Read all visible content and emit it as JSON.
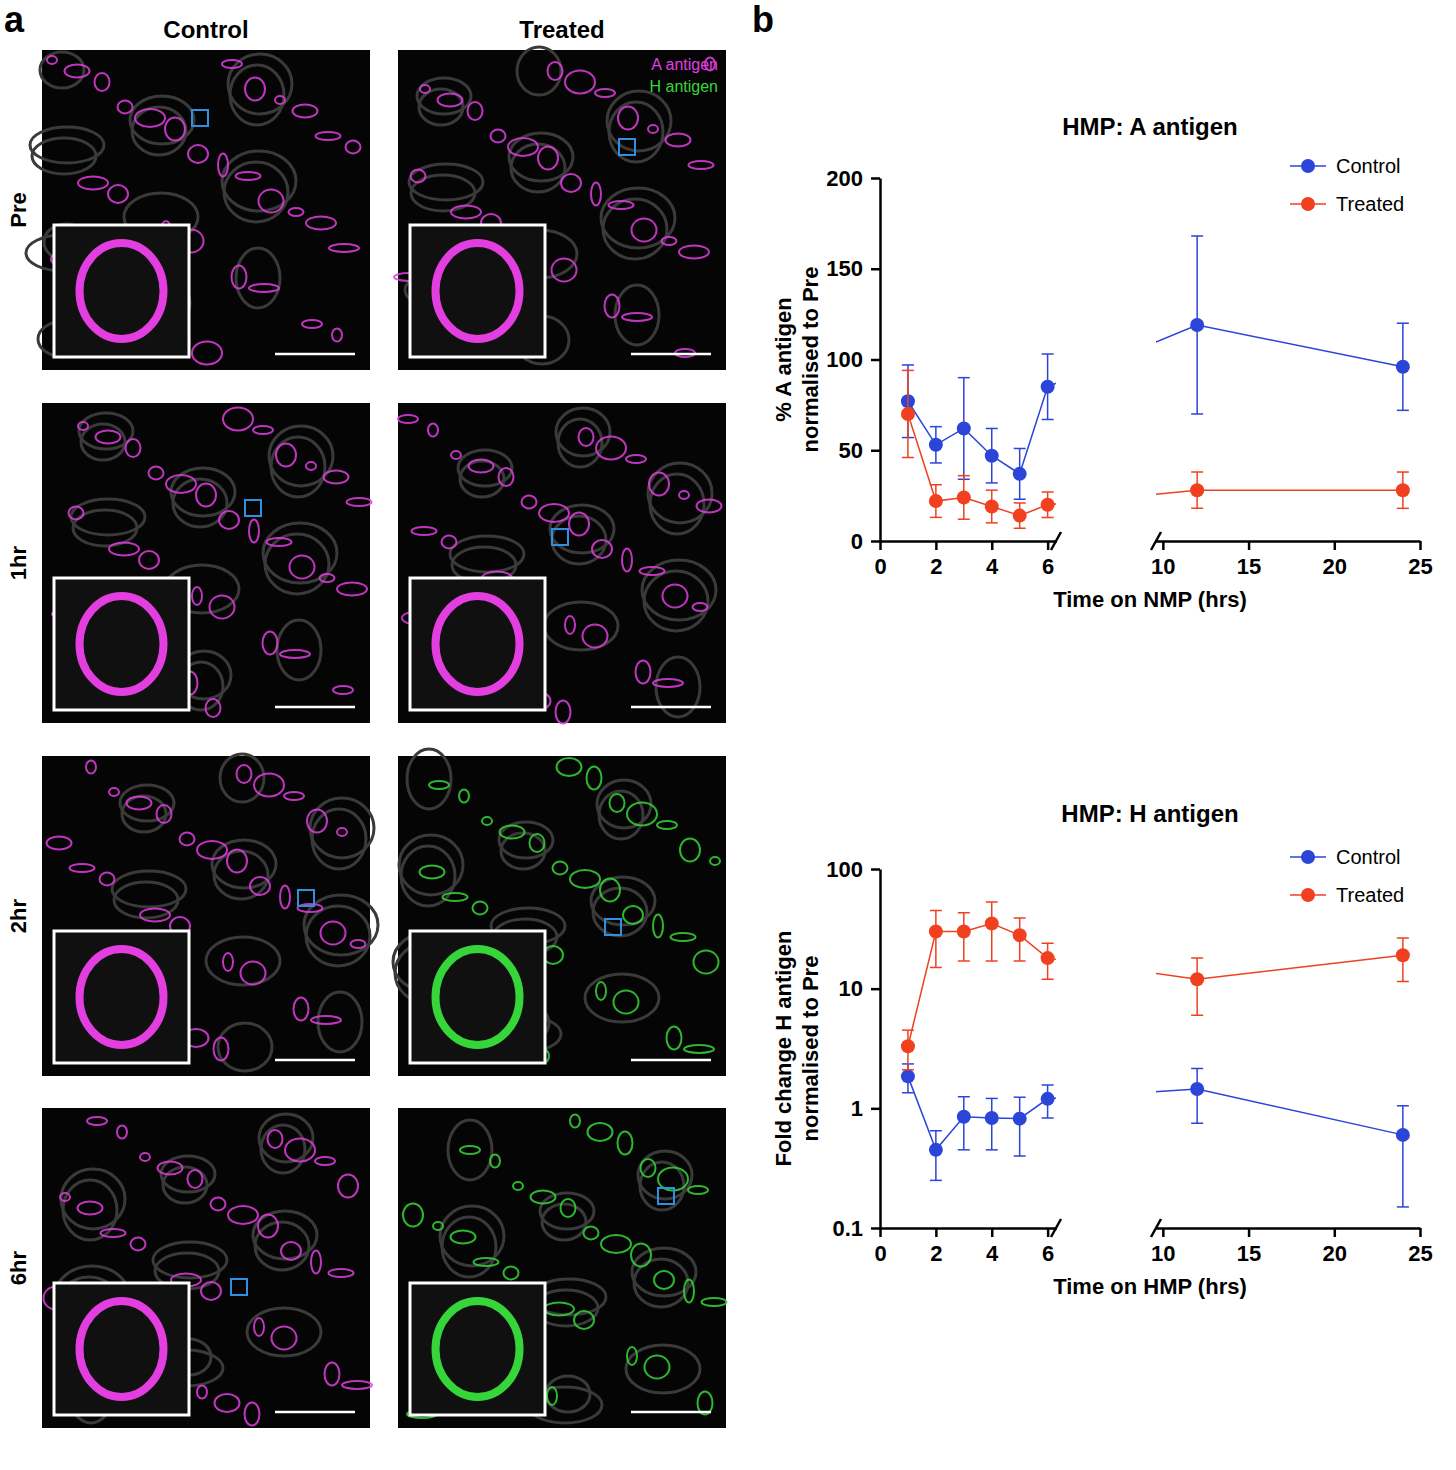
{
  "panel_a": {
    "letter": "a",
    "columns": [
      "Control",
      "Treated"
    ],
    "rows": [
      "Pre",
      "1hr",
      "2hr",
      "6hr"
    ],
    "legend": [
      {
        "name": "A antigen",
        "color": "#e23ee0"
      },
      {
        "name": "H antigen",
        "color": "#36d63a"
      }
    ]
  },
  "panel_b": {
    "letter": "b"
  },
  "chart_data": [
    {
      "type": "line",
      "title": "HMP: A antigen",
      "x_label": "Time on NMP (hrs)",
      "y_label": "% A antigen normalised to Pre",
      "x": [
        1,
        2,
        3,
        4,
        5,
        6,
        12,
        24
      ],
      "series": [
        {
          "name": "Control",
          "color": "#2b45d9",
          "values": [
            77,
            53,
            62,
            47,
            37,
            85,
            119,
            96
          ],
          "errors": [
            20,
            10,
            28,
            15,
            14,
            18,
            49,
            24
          ]
        },
        {
          "name": "Treated",
          "color": "#f0401f",
          "values": [
            70,
            22,
            24,
            19,
            14,
            20,
            28,
            28
          ],
          "errors": [
            24,
            9,
            12,
            9,
            7,
            7,
            10,
            10
          ]
        }
      ],
      "xlim": [
        0,
        25
      ],
      "xbreak": [
        6.3,
        9.6
      ],
      "xticks": [
        0,
        2,
        4,
        6,
        10,
        15,
        20,
        25
      ],
      "ylim": [
        0,
        200
      ],
      "yticks": [
        0,
        50,
        100,
        150,
        200
      ],
      "legend": "upper right",
      "marker": "circle",
      "grid": false
    },
    {
      "type": "line",
      "title": "HMP: H antigen",
      "x_label": "Time on HMP (hrs)",
      "y_label": "Fold change H antigen normalised to Pre",
      "x": [
        1,
        2,
        3,
        4,
        5,
        6,
        12,
        24
      ],
      "series": [
        {
          "name": "Control",
          "color": "#2b45d9",
          "values": [
            1.85,
            0.45,
            0.85,
            0.83,
            0.82,
            1.2,
            1.45,
            0.6
          ],
          "errors": [
            0.5,
            0.2,
            0.4,
            0.38,
            0.42,
            0.37,
            0.7,
            0.45
          ]
        },
        {
          "name": "Treated",
          "color": "#f0401f",
          "values": [
            3.3,
            30,
            30,
            35,
            28,
            18,
            12,
            19
          ],
          "errors": [
            1.2,
            15,
            13,
            18,
            11,
            6,
            6,
            7.5
          ]
        }
      ],
      "xlim": [
        0,
        25
      ],
      "xbreak": [
        6.3,
        9.6
      ],
      "xticks": [
        0,
        2,
        4,
        6,
        10,
        15,
        20,
        25
      ],
      "ylim": [
        0.1,
        100
      ],
      "yticks": [
        0.1,
        1,
        10,
        100
      ],
      "log": "y",
      "legend": "upper right",
      "marker": "circle",
      "grid": false
    }
  ]
}
